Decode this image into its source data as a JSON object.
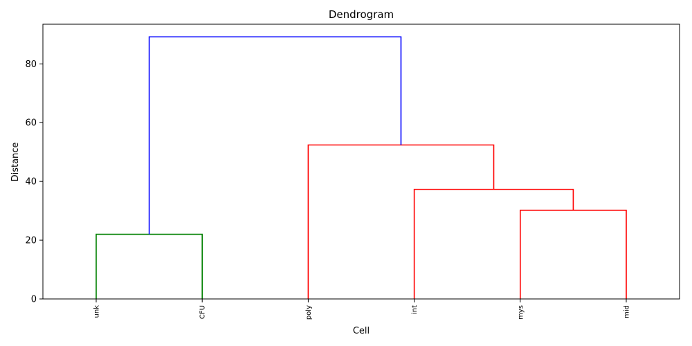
{
  "chart_data": {
    "type": "dendrogram",
    "title": "Dendrogram",
    "xlabel": "Cell",
    "ylabel": "Distance",
    "ylim": [
      0,
      93.5
    ],
    "yticks": [
      0,
      20,
      40,
      60,
      80
    ],
    "grid": false,
    "leaves": [
      "unk",
      "CFU",
      "poly",
      "int",
      "mys",
      "mid"
    ],
    "links": [
      {
        "id": "c1",
        "left": "unk",
        "right": "CFU",
        "height": 22.0,
        "color": "#008000"
      },
      {
        "id": "c2",
        "left": "mys",
        "right": "mid",
        "height": 30.2,
        "color": "#ff0000"
      },
      {
        "id": "c3",
        "left": "int",
        "right": "c2",
        "height": 37.3,
        "color": "#ff0000"
      },
      {
        "id": "c4",
        "left": "poly",
        "right": "c3",
        "height": 52.4,
        "color": "#ff0000"
      },
      {
        "id": "c5",
        "left": "c1",
        "right": "c4",
        "height": 89.2,
        "color": "#0000ff"
      }
    ]
  }
}
